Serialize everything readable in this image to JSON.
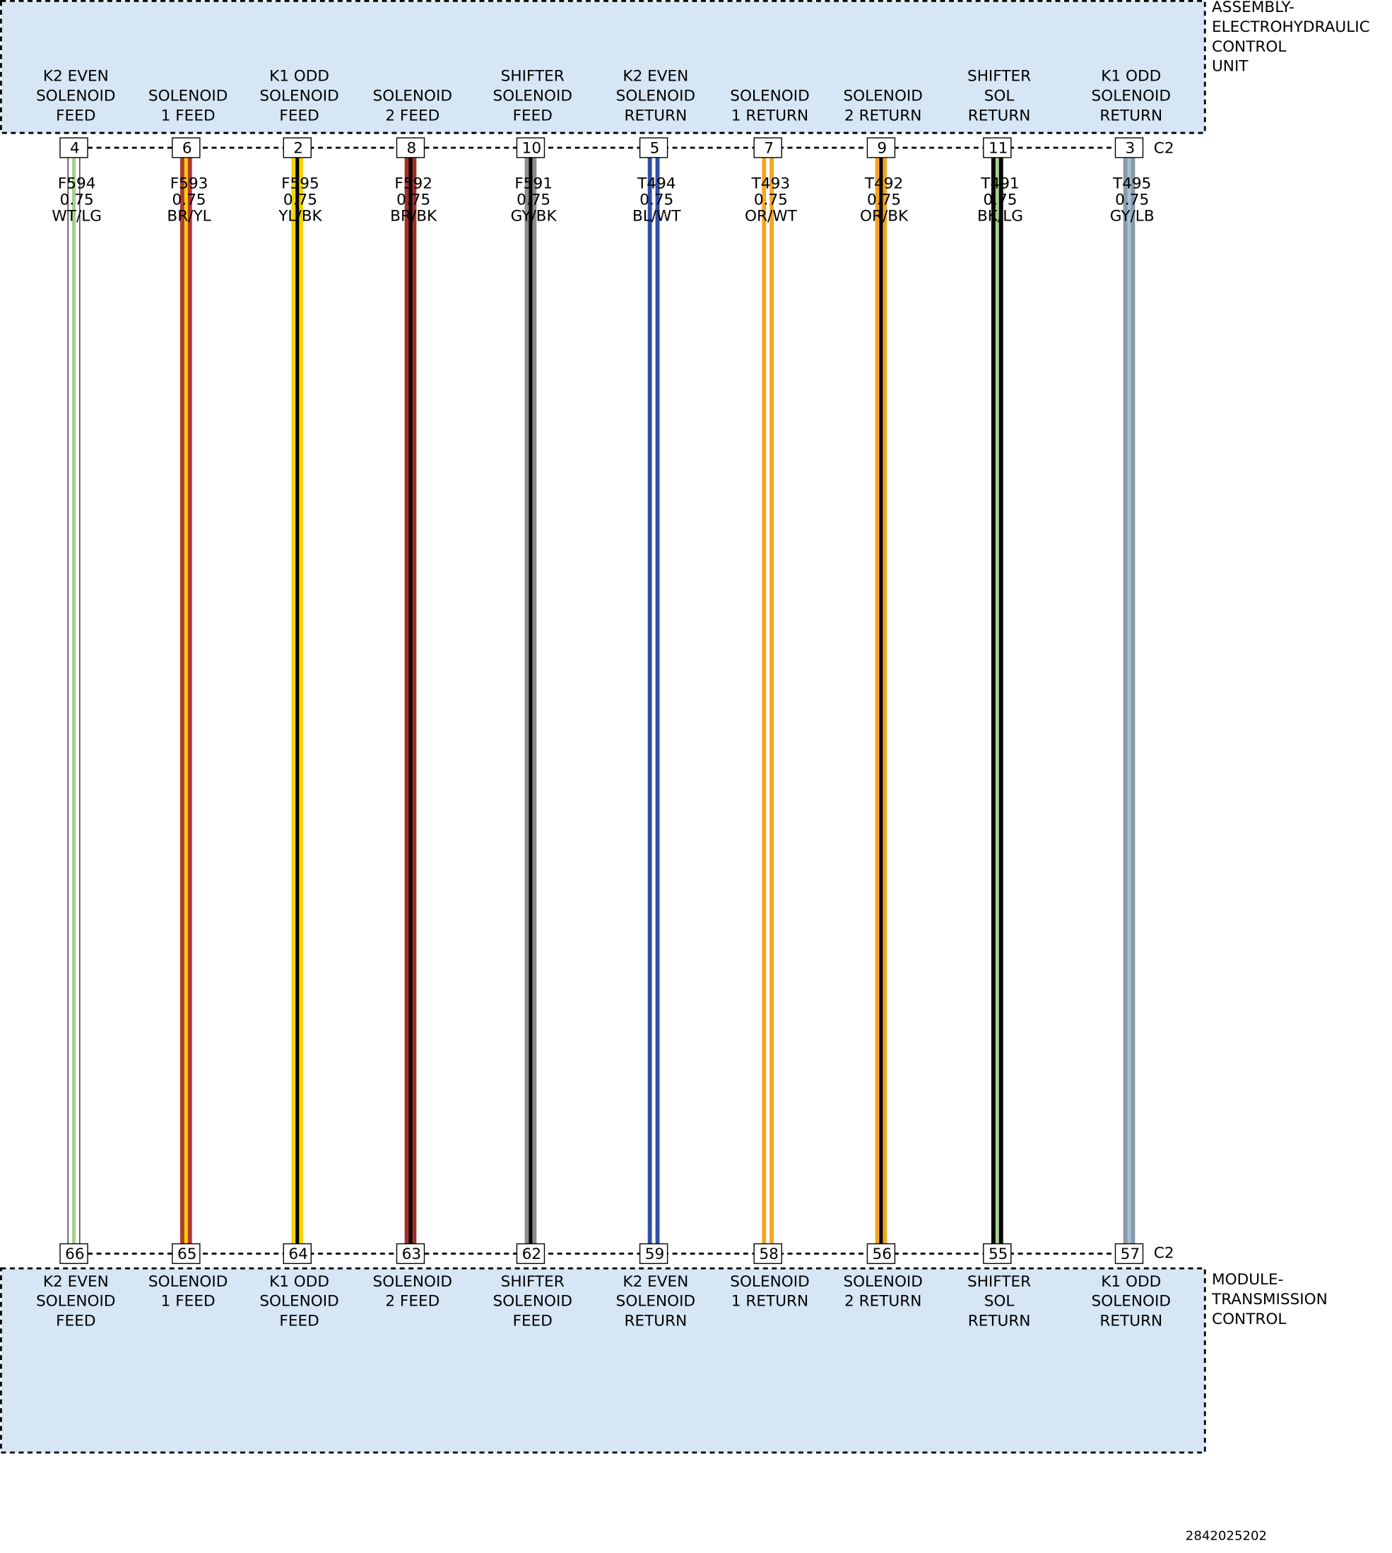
{
  "top_component": {
    "name": [
      "ASSEMBLY-",
      "ELECTROHYDRAULIC",
      "CONTROL",
      "UNIT"
    ],
    "connector": "C2"
  },
  "bottom_component": {
    "name": [
      "MODULE-",
      "TRANSMISSION",
      "CONTROL"
    ],
    "connector": "C2"
  },
  "wires": [
    {
      "top_label": [
        "K2 EVEN",
        "SOLENOID",
        "FEED"
      ],
      "top_pin": "4",
      "circuit": "F594",
      "gauge": "0.75",
      "color": "WT/LG",
      "bottom_pin": "66",
      "bottom_label": [
        "K2 EVEN",
        "SOLENOID",
        "FEED"
      ]
    },
    {
      "top_label": [
        "SOLENOID",
        "1 FEED"
      ],
      "top_pin": "6",
      "circuit": "F593",
      "gauge": "0.75",
      "color": "BR/YL",
      "bottom_pin": "65",
      "bottom_label": [
        "SOLENOID",
        "1 FEED"
      ]
    },
    {
      "top_label": [
        "K1 ODD",
        "SOLENOID",
        "FEED"
      ],
      "top_pin": "2",
      "circuit": "F595",
      "gauge": "0.75",
      "color": "YL/BK",
      "bottom_pin": "64",
      "bottom_label": [
        "K1 ODD",
        "SOLENOID",
        "FEED"
      ]
    },
    {
      "top_label": [
        "SOLENOID",
        "2 FEED"
      ],
      "top_pin": "8",
      "circuit": "F592",
      "gauge": "0.75",
      "color": "BR/BK",
      "bottom_pin": "63",
      "bottom_label": [
        "SOLENOID",
        "2 FEED"
      ]
    },
    {
      "top_label": [
        "SHIFTER",
        "SOLENOID",
        "FEED"
      ],
      "top_pin": "10",
      "circuit": "F591",
      "gauge": "0.75",
      "color": "GY/BK",
      "bottom_pin": "62",
      "bottom_label": [
        "SHIFTER",
        "SOLENOID",
        "FEED"
      ]
    },
    {
      "top_label": [
        "K2 EVEN",
        "SOLENOID",
        "RETURN"
      ],
      "top_pin": "5",
      "circuit": "T494",
      "gauge": "0.75",
      "color": "BL/WT",
      "bottom_pin": "59",
      "bottom_label": [
        "K2 EVEN",
        "SOLENOID",
        "RETURN"
      ]
    },
    {
      "top_label": [
        "SOLENOID",
        "1 RETURN"
      ],
      "top_pin": "7",
      "circuit": "T493",
      "gauge": "0.75",
      "color": "OR/WT",
      "bottom_pin": "58",
      "bottom_label": [
        "SOLENOID",
        "1 RETURN"
      ]
    },
    {
      "top_label": [
        "SOLENOID",
        "2 RETURN"
      ],
      "top_pin": "9",
      "circuit": "T492",
      "gauge": "0.75",
      "color": "OR/BK",
      "bottom_pin": "56",
      "bottom_label": [
        "SOLENOID",
        "2 RETURN"
      ]
    },
    {
      "top_label": [
        "SHIFTER",
        "SOL",
        "RETURN"
      ],
      "top_pin": "11",
      "circuit": "T491",
      "gauge": "0.75",
      "color": "BK/LG",
      "bottom_pin": "55",
      "bottom_label": [
        "SHIFTER",
        "SOL",
        "RETURN"
      ]
    },
    {
      "top_label": [
        "K1 ODD",
        "SOLENOID",
        "RETURN"
      ],
      "top_pin": "3",
      "circuit": "T495",
      "gauge": "0.75",
      "color": "GY/LB",
      "bottom_pin": "57",
      "bottom_label": [
        "K1 ODD",
        "SOLENOID",
        "RETURN"
      ]
    }
  ],
  "figure_id": "2842025202"
}
